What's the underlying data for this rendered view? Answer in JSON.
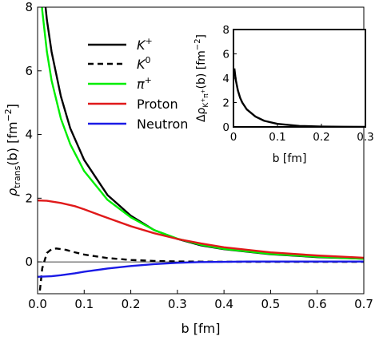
{
  "chart_data": [
    {
      "type": "line",
      "title": "",
      "xlabel": "b [fm]",
      "ylabel": "ρtrans(b) [fm−2]",
      "ylabel_parts": {
        "rho": "ρ",
        "sub": "trans",
        "rest": "(b) [fm",
        "exp": "−2",
        "close": "]"
      },
      "xlim": [
        0,
        0.7
      ],
      "ylim": [
        -1,
        8
      ],
      "x_ticks": [
        "0.0",
        "0.1",
        "0.2",
        "0.3",
        "0.4",
        "0.5",
        "0.6",
        "0.7"
      ],
      "x_tick_values": [
        0,
        0.1,
        0.2,
        0.3,
        0.4,
        0.5,
        0.6,
        0.7
      ],
      "y_ticks": [
        "0",
        "2",
        "4",
        "6",
        "8"
      ],
      "y_tick_values": [
        0,
        2,
        4,
        6,
        8
      ],
      "zero_line": true,
      "grid": false,
      "legend_position": "top-center",
      "series": [
        {
          "name": "K+",
          "name_base": "K",
          "name_sup": "+",
          "color": "#000000",
          "dash": "solid",
          "x": [
            0.01,
            0.015,
            0.02,
            0.03,
            0.05,
            0.07,
            0.1,
            0.15,
            0.2,
            0.25,
            0.3,
            0.35,
            0.4,
            0.5,
            0.6,
            0.7
          ],
          "y": [
            9.5,
            8.3,
            7.6,
            6.6,
            5.2,
            4.2,
            3.2,
            2.1,
            1.45,
            1.0,
            0.72,
            0.52,
            0.4,
            0.24,
            0.15,
            0.1
          ]
        },
        {
          "name": "K0",
          "name_base": "K",
          "name_sup": "0",
          "color": "#000000",
          "dash": "dashed",
          "x": [
            0.005,
            0.01,
            0.02,
            0.03,
            0.04,
            0.06,
            0.08,
            0.1,
            0.15,
            0.2,
            0.25,
            0.3,
            0.35,
            0.4,
            0.5,
            0.6,
            0.7
          ],
          "y": [
            -0.9,
            -0.2,
            0.28,
            0.4,
            0.42,
            0.38,
            0.3,
            0.23,
            0.12,
            0.06,
            0.03,
            0.015,
            0.008,
            0.004,
            0.0,
            0.0,
            0.0
          ]
        },
        {
          "name": "π+",
          "name_base": "π",
          "name_sup": "+",
          "color": "#00ee00",
          "dash": "solid",
          "x": [
            0.005,
            0.01,
            0.02,
            0.03,
            0.05,
            0.07,
            0.1,
            0.15,
            0.2,
            0.25,
            0.3,
            0.35,
            0.4,
            0.5,
            0.6,
            0.7
          ],
          "y": [
            9.0,
            7.9,
            6.6,
            5.7,
            4.5,
            3.7,
            2.85,
            1.95,
            1.4,
            1.0,
            0.73,
            0.54,
            0.41,
            0.25,
            0.16,
            0.1
          ]
        },
        {
          "name": "Proton",
          "name_base": "Proton",
          "name_sup": "",
          "color": "#e0191a",
          "dash": "solid",
          "x": [
            0,
            0.02,
            0.05,
            0.08,
            0.1,
            0.15,
            0.2,
            0.25,
            0.3,
            0.35,
            0.4,
            0.5,
            0.6,
            0.7
          ],
          "y": [
            1.93,
            1.92,
            1.85,
            1.75,
            1.65,
            1.38,
            1.12,
            0.9,
            0.72,
            0.58,
            0.46,
            0.3,
            0.2,
            0.13
          ]
        },
        {
          "name": "Neutron",
          "name_base": "Neutron",
          "name_sup": "",
          "color": "#1a1ae6",
          "dash": "solid",
          "x": [
            0,
            0.03,
            0.05,
            0.08,
            0.1,
            0.15,
            0.2,
            0.25,
            0.3,
            0.35,
            0.4,
            0.45,
            0.5,
            0.6,
            0.7
          ],
          "y": [
            -0.47,
            -0.45,
            -0.42,
            -0.36,
            -0.31,
            -0.21,
            -0.13,
            -0.07,
            -0.03,
            -0.005,
            0.0,
            0.01,
            0.01,
            0.01,
            0.01
          ]
        }
      ]
    },
    {
      "type": "line",
      "title": "",
      "xlabel": "b [fm]",
      "ylabel": "ΔρK+π+(b) [fm−2]",
      "ylabel_parts": {
        "delta": "Δρ",
        "sub": "K",
        "subsup1": "+",
        "sub2": "π",
        "subsup2": "+",
        "rest": "(b) [fm",
        "exp": "−2",
        "close": "]"
      },
      "xlim": [
        0,
        0.3
      ],
      "ylim": [
        0,
        8
      ],
      "x_ticks": [
        "0",
        "0.1",
        "0.2",
        "0.3"
      ],
      "x_tick_values": [
        0,
        0.1,
        0.2,
        0.3
      ],
      "y_ticks": [
        "0",
        "2",
        "4",
        "6",
        "8"
      ],
      "y_tick_values": [
        0,
        2,
        4,
        6,
        8
      ],
      "grid": false,
      "series": [
        {
          "color": "#000000",
          "dash": "solid",
          "x": [
            0.002,
            0.005,
            0.01,
            0.015,
            0.02,
            0.03,
            0.05,
            0.07,
            0.1,
            0.15,
            0.2,
            0.25,
            0.3
          ],
          "y": [
            4.8,
            3.9,
            3.0,
            2.4,
            2.0,
            1.45,
            0.85,
            0.5,
            0.25,
            0.08,
            0.03,
            0.01,
            0.005
          ]
        }
      ]
    }
  ]
}
